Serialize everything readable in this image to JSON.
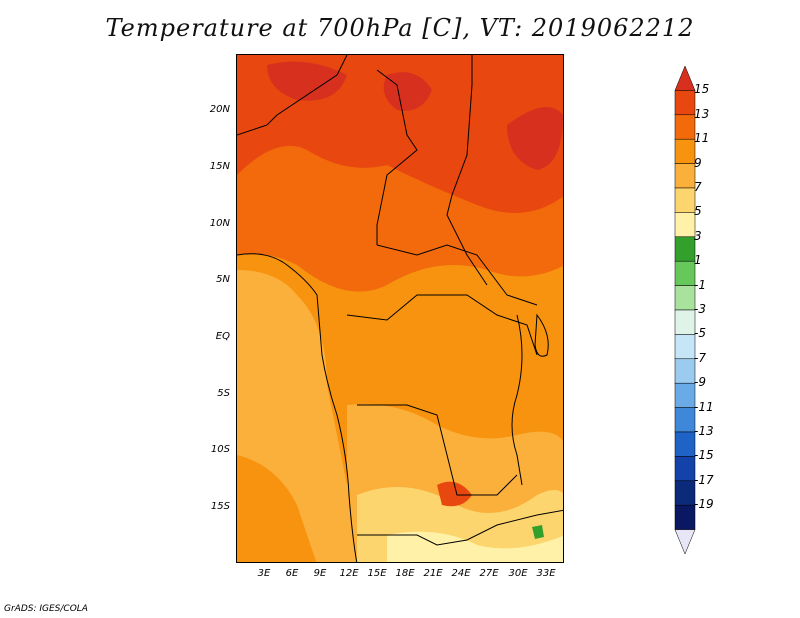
{
  "title": "Temperature at 700hPa [C], VT: 2019062212",
  "credit": "GrADS: IGES/COLA",
  "map": {
    "y_ticks": [
      "20N",
      "15N",
      "10N",
      "5N",
      "EQ",
      "5S",
      "10S",
      "15S"
    ],
    "x_ticks": [
      "3E",
      "6E",
      "9E",
      "12E",
      "15E",
      "18E",
      "21E",
      "24E",
      "27E",
      "30E",
      "33E"
    ]
  },
  "colorbar": {
    "labels": [
      "15",
      "13",
      "11",
      "9",
      "7",
      "5",
      "3",
      "1",
      "-1",
      "-3",
      "-5",
      "-7",
      "-9",
      "-11",
      "-13",
      "-15",
      "-17",
      "-19"
    ],
    "colors": [
      "#d7301f",
      "#e8480f",
      "#f26a0c",
      "#f7930e",
      "#fbb03b",
      "#fdd56e",
      "#fff2a8",
      "#33a02c",
      "#66c85a",
      "#a8e29c",
      "#dff3e8",
      "#c6e6f7",
      "#9ccbf0",
      "#6aaae6",
      "#3f87d9",
      "#1f63c6",
      "#1342a8",
      "#0b2a7a",
      "#0a1763",
      "#e6e6f7"
    ]
  },
  "legend_colors": {
    "hot": "#d7301f",
    "warm": "#f26a0c",
    "mild": "#fbb03b",
    "cool": "#fff2a8",
    "green": "#33a02c"
  }
}
